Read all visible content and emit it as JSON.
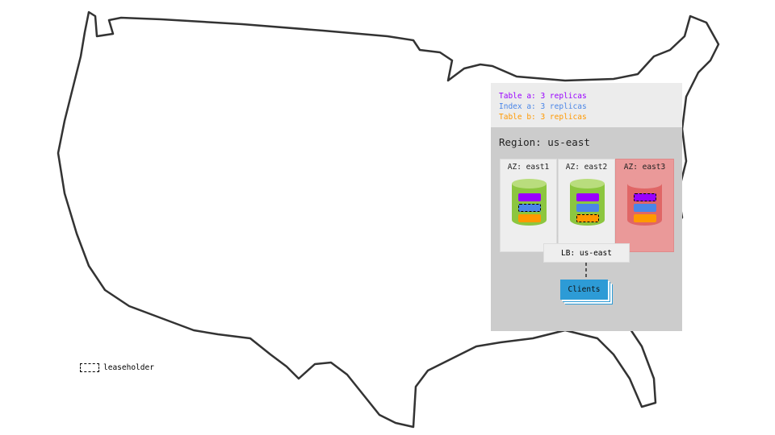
{
  "legend": {
    "items": [
      {
        "text": "Table a: 3 replicas",
        "color": "#9900ff"
      },
      {
        "text": "Index a: 3 replicas",
        "color": "#4a86e8"
      },
      {
        "text": "Table b: 3 replicas",
        "color": "#ff9900"
      }
    ],
    "leaseholder_label": "leaseholder"
  },
  "region": {
    "label": "Region: us-east"
  },
  "azs": [
    {
      "label": "AZ: east1",
      "status": "healthy",
      "leaseholder": "Index a"
    },
    {
      "label": "AZ: east2",
      "status": "healthy",
      "leaseholder": "Table b"
    },
    {
      "label": "AZ: east3",
      "status": "failed",
      "leaseholder": "Table a"
    }
  ],
  "lb": {
    "label": "LB: us-east"
  },
  "clients": {
    "label": "Clients"
  },
  "colors": {
    "healthy": "#8cc63f",
    "healthy_top": "#b9dd7d",
    "failed": "#e06666",
    "failed_top": "#ea9999",
    "failed_bg": "#ea9999",
    "clients": "#2d9bd6"
  }
}
